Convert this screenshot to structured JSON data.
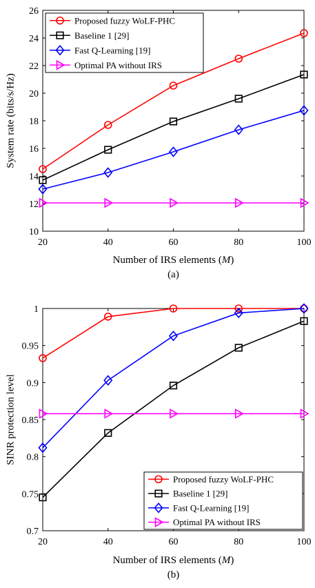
{
  "chart_data": [
    {
      "type": "line",
      "caption": "(a)",
      "xlabel": "Number of IRS elements (M)",
      "xlabel_main": "Number of IRS elements (",
      "xlabel_italic": "M",
      "xlabel_close": ")",
      "ylabel": "System rate (bits/s/Hz)",
      "x": [
        20,
        40,
        60,
        80,
        100
      ],
      "xlim": [
        20,
        100
      ],
      "ylim": [
        10,
        26
      ],
      "xticks": [
        20,
        40,
        60,
        80,
        100
      ],
      "yticks": [
        10,
        12,
        14,
        16,
        18,
        20,
        22,
        24,
        26
      ],
      "ytick_labels": [
        "10",
        "12",
        "14",
        "16",
        "18",
        "20",
        "22",
        "24",
        "26"
      ],
      "grid": false,
      "legend_position": "top-left",
      "series": [
        {
          "name": "Proposed fuzzy WoLF-PHC",
          "color": "#ff0000",
          "marker": "circle",
          "values": [
            14.5,
            17.7,
            20.55,
            22.5,
            24.35
          ]
        },
        {
          "name": "Baseline 1 [29]",
          "color": "#000000",
          "marker": "square",
          "values": [
            13.7,
            15.9,
            17.95,
            19.6,
            21.35
          ]
        },
        {
          "name": "Fast Q-Learning [19]",
          "color": "#0000ff",
          "marker": "diamond",
          "values": [
            13.05,
            14.25,
            15.75,
            17.35,
            18.75
          ]
        },
        {
          "name": "Optimal PA without IRS",
          "color": "#ff00ff",
          "marker": "triangle-right",
          "values": [
            12.05,
            12.05,
            12.05,
            12.05,
            12.05
          ]
        }
      ]
    },
    {
      "type": "line",
      "caption": "(b)",
      "xlabel": "Number of IRS elements (M)",
      "xlabel_main": "Number of IRS elements (",
      "xlabel_italic": "M",
      "xlabel_close": ")",
      "ylabel": "SINR protection level",
      "x": [
        20,
        40,
        60,
        80,
        100
      ],
      "xlim": [
        20,
        100
      ],
      "ylim": [
        0.7,
        1.0
      ],
      "xticks": [
        20,
        40,
        60,
        80,
        100
      ],
      "yticks": [
        0.7,
        0.75,
        0.8,
        0.85,
        0.9,
        0.95,
        1.0
      ],
      "ytick_labels": [
        "0.7",
        "0.75",
        "0.8",
        "0.85",
        "0.9",
        "0.95",
        "1"
      ],
      "grid": false,
      "legend_position": "bottom-right",
      "series": [
        {
          "name": "Proposed fuzzy WoLF-PHC",
          "color": "#ff0000",
          "marker": "circle",
          "values": [
            0.933,
            0.989,
            1.0,
            1.0,
            1.0
          ]
        },
        {
          "name": "Baseline 1 [29]",
          "color": "#000000",
          "marker": "square",
          "values": [
            0.745,
            0.832,
            0.896,
            0.947,
            0.983
          ]
        },
        {
          "name": "Fast Q-Learning [19]",
          "color": "#0000ff",
          "marker": "diamond",
          "values": [
            0.812,
            0.903,
            0.963,
            0.994,
            1.0
          ]
        },
        {
          "name": "Optimal PA without IRS",
          "color": "#ff00ff",
          "marker": "triangle-right",
          "values": [
            0.858,
            0.858,
            0.858,
            0.858,
            0.858
          ]
        }
      ]
    }
  ]
}
